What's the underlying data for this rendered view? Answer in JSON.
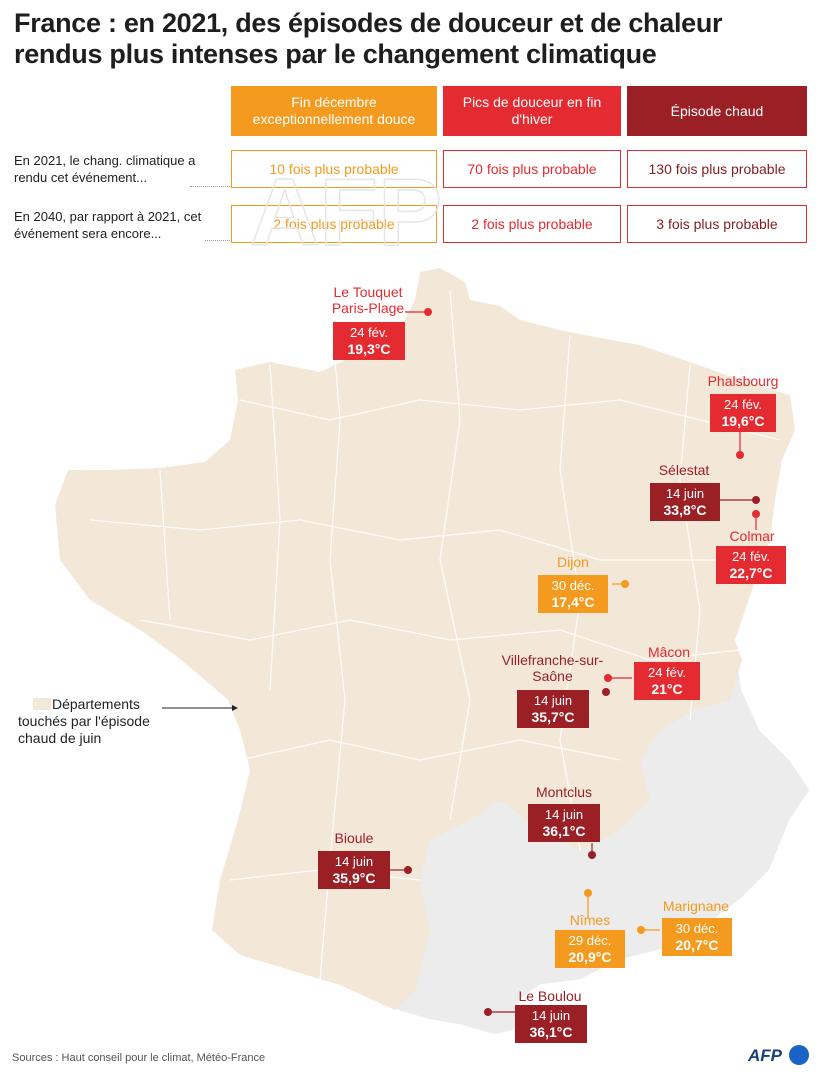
{
  "title": "France : en 2021, des épisodes de douceur et de chaleur rendus plus intenses par le changement climatique",
  "colors": {
    "orange": "#f39a1f",
    "red": "#e32b31",
    "darkred": "#9a2026",
    "land": "#f3e7d8",
    "lightgrey": "#ececec"
  },
  "table": {
    "headers": [
      "Fin décembre exceptionnellement douce",
      "Pics de douceur en fin d'hiver",
      "Épisode chaud"
    ],
    "row1": {
      "label": "En 2021, le chang. climatique a rendu cet événement...",
      "values": [
        "10 fois plus probable",
        "70 fois plus probable",
        "130 fois plus probable"
      ]
    },
    "row2": {
      "label": "En 2040, par rapport à 2021, cet événement sera encore...",
      "values": [
        "2 fois plus probable",
        "2 fois plus probable",
        "3 fois plus probable"
      ]
    }
  },
  "legend": {
    "label": "Départements touchés par l'épisode chaud de juin"
  },
  "cities": [
    {
      "name": "Le Touquet Paris-Plage",
      "date": "24 fév.",
      "temp": "19,3°C",
      "category": "red"
    },
    {
      "name": "Phalsbourg",
      "date": "24 fév.",
      "temp": "19,6°C",
      "category": "red"
    },
    {
      "name": "Sélestat",
      "date": "14 juin",
      "temp": "33,8°C",
      "category": "darkred"
    },
    {
      "name": "Colmar",
      "date": "24 fév.",
      "temp": "22,7°C",
      "category": "red"
    },
    {
      "name": "Dijon",
      "date": "30 déc.",
      "temp": "17,4°C",
      "category": "orange"
    },
    {
      "name": "Mâcon",
      "date": "24 fév.",
      "temp": "21°C",
      "category": "red"
    },
    {
      "name": "Villefranche-sur-Saône",
      "date": "14 juin",
      "temp": "35,7°C",
      "category": "darkred"
    },
    {
      "name": "Montclus",
      "date": "14 juin",
      "temp": "36,1°C",
      "category": "darkred"
    },
    {
      "name": "Bioule",
      "date": "14 juin",
      "temp": "35,9°C",
      "category": "darkred"
    },
    {
      "name": "Nîmes",
      "date": "29 déc.",
      "temp": "20,9°C",
      "category": "orange"
    },
    {
      "name": "Marignane",
      "date": "30 déc.",
      "temp": "20,7°C",
      "category": "orange"
    },
    {
      "name": "Le Boulou",
      "date": "14 juin",
      "temp": "36,1°C",
      "category": "darkred"
    }
  ],
  "source": "Sources : Haut conseil pour le climat, Météo-France",
  "credit": "AFP"
}
